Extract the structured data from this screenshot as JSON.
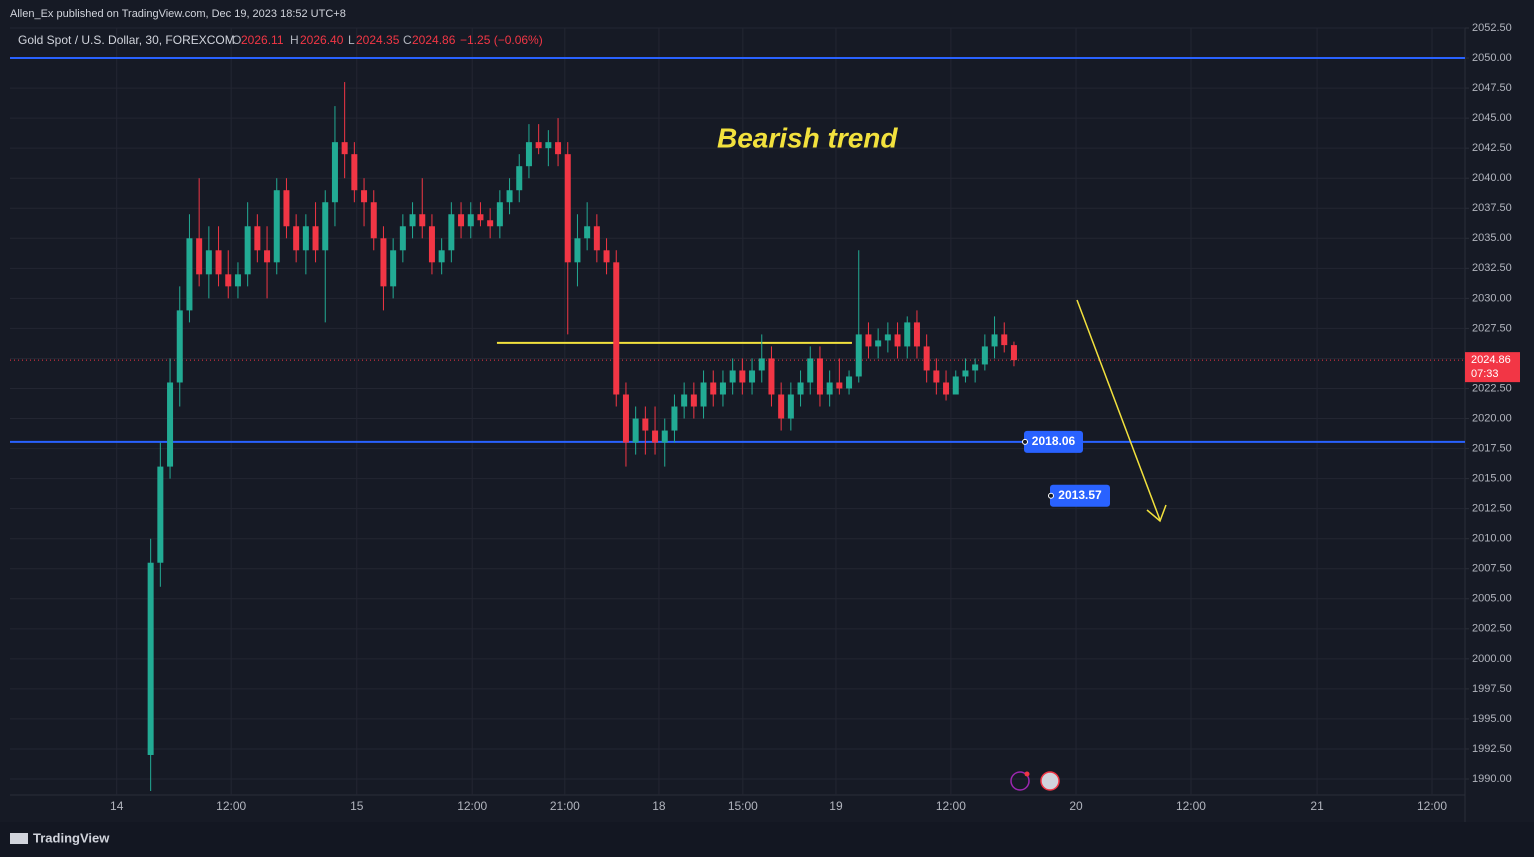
{
  "header": {
    "publisher": "Allen_Ex published on TradingView.com, Dec 19, 2023 18:52 UTC+8"
  },
  "chart_data": {
    "type": "candlestick",
    "legend": {
      "symbol": "Gold Spot / U.S. Dollar, 30, FOREXCOM",
      "open_label": "O",
      "open": "2026.11",
      "high_label": "H",
      "high": "2026.40",
      "low_label": "L",
      "low": "2024.35",
      "close_label": "C",
      "close": "2024.86",
      "change": "−1.25 (−0.06%)"
    },
    "annotation": "Bearish trend",
    "up_color": "#22ab94",
    "down_color": "#f23645",
    "xlim": [
      0,
      300
    ],
    "ylim": [
      1988.67,
      2052.5
    ],
    "grid": true,
    "xticks": [
      {
        "value": 22,
        "label": "14"
      },
      {
        "value": 45.6,
        "label": "12:00"
      },
      {
        "value": 71.5,
        "label": "15"
      },
      {
        "value": 95.3,
        "label": "12:00"
      },
      {
        "value": 114.4,
        "label": "21:00"
      },
      {
        "value": 133.8,
        "label": "18"
      },
      {
        "value": 151.1,
        "label": "15:00"
      },
      {
        "value": 170.3,
        "label": "19"
      },
      {
        "value": 194,
        "label": "12:00"
      },
      {
        "value": 219.8,
        "label": "20"
      },
      {
        "value": 243.5,
        "label": "12:00"
      },
      {
        "value": 269.5,
        "label": "21"
      },
      {
        "value": 293.2,
        "label": "12:00"
      }
    ],
    "yticks": [
      {
        "value": 1990,
        "label": "1990.00"
      },
      {
        "value": 1992.5,
        "label": "1992.50"
      },
      {
        "value": 1995,
        "label": "1995.00"
      },
      {
        "value": 1997.5,
        "label": "1997.50"
      },
      {
        "value": 2000,
        "label": "2000.00"
      },
      {
        "value": 2002.5,
        "label": "2002.50"
      },
      {
        "value": 2005,
        "label": "2005.00"
      },
      {
        "value": 2007.5,
        "label": "2007.50"
      },
      {
        "value": 2010,
        "label": "2010.00"
      },
      {
        "value": 2012.5,
        "label": "2012.50"
      },
      {
        "value": 2015,
        "label": "2015.00"
      },
      {
        "value": 2017.5,
        "label": "2017.50"
      },
      {
        "value": 2020,
        "label": "2020.00"
      },
      {
        "value": 2022.5,
        "label": "2022.50"
      },
      {
        "value": 2025,
        "label": "2025.00"
      },
      {
        "value": 2027.5,
        "label": "2027.50"
      },
      {
        "value": 2030,
        "label": "2030.00"
      },
      {
        "value": 2032.5,
        "label": "2032.50"
      },
      {
        "value": 2035,
        "label": "2035.00"
      },
      {
        "value": 2037.5,
        "label": "2037.50"
      },
      {
        "value": 2040,
        "label": "2040.00"
      },
      {
        "value": 2042.5,
        "label": "2042.50"
      },
      {
        "value": 2045,
        "label": "2045.00"
      },
      {
        "value": 2047.5,
        "label": "2047.50"
      },
      {
        "value": 2050,
        "label": "2050.00"
      },
      {
        "value": 2052.5,
        "label": "2052.50"
      }
    ],
    "x": [
      29,
      31,
      33,
      35,
      37,
      39,
      41,
      43,
      45,
      47,
      49,
      51,
      53,
      55,
      57,
      59,
      61,
      63,
      65,
      67,
      69,
      71,
      73,
      75,
      77,
      79,
      81,
      83,
      85,
      87,
      89,
      91,
      93,
      95,
      97,
      99,
      101,
      103,
      105,
      107,
      109,
      111,
      113,
      115,
      117,
      119,
      121,
      123,
      125,
      127,
      129,
      131,
      133,
      135,
      137,
      139,
      141,
      143,
      145,
      147,
      149,
      151,
      153,
      155,
      157,
      159,
      161,
      163,
      165,
      167,
      169,
      171,
      173,
      175,
      177,
      179,
      181,
      183,
      185,
      187,
      189,
      191,
      193,
      195,
      197,
      199,
      201,
      203,
      205,
      207
    ],
    "ohlc": [
      [
        1992,
        2010,
        1989,
        2008
      ],
      [
        2008,
        2018,
        2006,
        2016
      ],
      [
        2016,
        2025,
        2015,
        2023
      ],
      [
        2023,
        2031,
        2021,
        2029
      ],
      [
        2029,
        2037,
        2028,
        2035
      ],
      [
        2035,
        2040,
        2031,
        2032
      ],
      [
        2032,
        2036,
        2030,
        2034
      ],
      [
        2034,
        2036,
        2031,
        2032
      ],
      [
        2032,
        2034,
        2030,
        2031
      ],
      [
        2031,
        2033,
        2030,
        2032
      ],
      [
        2032,
        2038,
        2031,
        2036
      ],
      [
        2036,
        2037,
        2033,
        2034
      ],
      [
        2034,
        2036,
        2030,
        2033
      ],
      [
        2033,
        2040,
        2032,
        2039
      ],
      [
        2039,
        2040,
        2035,
        2036
      ],
      [
        2036,
        2037,
        2033,
        2034
      ],
      [
        2034,
        2037,
        2032,
        2036
      ],
      [
        2036,
        2038,
        2033,
        2034
      ],
      [
        2034,
        2039,
        2028,
        2038
      ],
      [
        2038,
        2046,
        2036,
        2043
      ],
      [
        2043,
        2048,
        2040,
        2042
      ],
      [
        2042,
        2043,
        2038,
        2039
      ],
      [
        2039,
        2040,
        2036,
        2038
      ],
      [
        2038,
        2039,
        2034,
        2035
      ],
      [
        2035,
        2036,
        2029,
        2031
      ],
      [
        2031,
        2035,
        2030,
        2034
      ],
      [
        2034,
        2037,
        2033,
        2036
      ],
      [
        2036,
        2038,
        2035,
        2037
      ],
      [
        2037,
        2040,
        2035,
        2036
      ],
      [
        2036,
        2037,
        2032,
        2033
      ],
      [
        2033,
        2035,
        2032,
        2034
      ],
      [
        2034,
        2038,
        2033,
        2037
      ],
      [
        2037,
        2038,
        2035,
        2036
      ],
      [
        2036,
        2038,
        2035,
        2037
      ],
      [
        2037,
        2038,
        2036,
        2036.5
      ],
      [
        2036.5,
        2037.5,
        2035,
        2036
      ],
      [
        2036,
        2039,
        2035,
        2038
      ],
      [
        2038,
        2040,
        2037,
        2039
      ],
      [
        2039,
        2042,
        2038,
        2041
      ],
      [
        2041,
        2044.5,
        2040,
        2043
      ],
      [
        2043,
        2044.5,
        2042,
        2042.5
      ],
      [
        2042.5,
        2044,
        2041,
        2043
      ],
      [
        2043,
        2045,
        2041,
        2042
      ],
      [
        2042,
        2043,
        2027,
        2033
      ],
      [
        2033,
        2037,
        2031,
        2035
      ],
      [
        2035,
        2038,
        2034,
        2036
      ],
      [
        2036,
        2037,
        2033,
        2034
      ],
      [
        2034,
        2035,
        2032,
        2033
      ],
      [
        2033,
        2034,
        2021,
        2022
      ],
      [
        2022,
        2023,
        2016,
        2018
      ],
      [
        2018,
        2021,
        2017,
        2020
      ],
      [
        2020,
        2021,
        2017,
        2019
      ],
      [
        2019,
        2021,
        2017,
        2018
      ],
      [
        2018,
        2020,
        2016,
        2019
      ],
      [
        2019,
        2022,
        2018,
        2021
      ],
      [
        2021,
        2023,
        2020,
        2022
      ],
      [
        2022,
        2023,
        2020,
        2021
      ],
      [
        2021,
        2024,
        2020,
        2023
      ],
      [
        2023,
        2024,
        2021,
        2022
      ],
      [
        2022,
        2024,
        2021,
        2023
      ],
      [
        2023,
        2025,
        2022,
        2024
      ],
      [
        2024,
        2025,
        2022,
        2023
      ],
      [
        2023,
        2025,
        2022,
        2024
      ],
      [
        2024,
        2027,
        2023,
        2025
      ],
      [
        2025,
        2026,
        2021,
        2022
      ],
      [
        2022,
        2023,
        2019,
        2020
      ],
      [
        2020,
        2023,
        2019,
        2022
      ],
      [
        2022,
        2024,
        2021,
        2023
      ],
      [
        2023,
        2026,
        2022,
        2025
      ],
      [
        2025,
        2026,
        2021,
        2022
      ],
      [
        2022,
        2024,
        2021,
        2023
      ],
      [
        2023,
        2025,
        2022,
        2022.5
      ],
      [
        2022.5,
        2024,
        2022,
        2023.5
      ],
      [
        2023.5,
        2034,
        2023,
        2027
      ],
      [
        2027,
        2028,
        2025,
        2026
      ],
      [
        2026,
        2027.5,
        2025,
        2026.5
      ],
      [
        2026.5,
        2028,
        2025.5,
        2027
      ],
      [
        2027,
        2028,
        2025,
        2026
      ],
      [
        2026,
        2028.5,
        2025,
        2028
      ],
      [
        2028,
        2029,
        2025,
        2026
      ],
      [
        2026,
        2027,
        2023,
        2024
      ],
      [
        2024,
        2025,
        2022,
        2023
      ],
      [
        2023,
        2024,
        2021.5,
        2022
      ],
      [
        2022,
        2024,
        2022,
        2023.5
      ],
      [
        2023.5,
        2025,
        2023,
        2024
      ],
      [
        2024,
        2025,
        2023,
        2024.5
      ],
      [
        2024.5,
        2027,
        2024,
        2026
      ],
      [
        2026,
        2028.5,
        2025,
        2027
      ],
      [
        2027,
        2028,
        2025.5,
        2026.11
      ],
      [
        2026.11,
        2026.4,
        2024.35,
        2024.86
      ]
    ],
    "resistance_level": 2050,
    "level_color": "#2962ff",
    "support_level": 2018.06,
    "target_level": 2013.57,
    "trend_line": {
      "value": 2026.3,
      "x": [
        100.4,
        173.6
      ],
      "color": "#f2e13d"
    },
    "current_price": 2024.86,
    "countdown": "07:33"
  },
  "footer": {
    "brand": "TradingView"
  }
}
